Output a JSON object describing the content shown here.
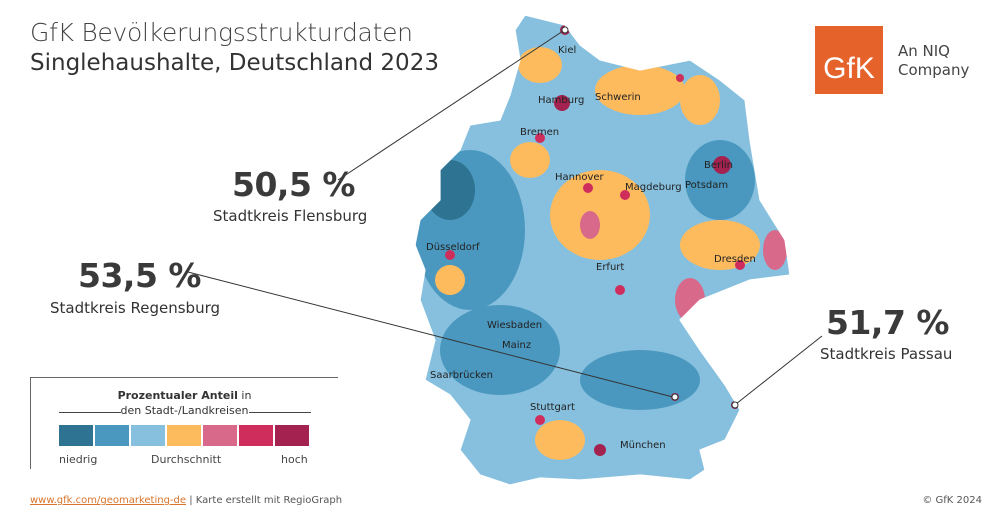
{
  "header": {
    "title": "GfK Bevölkerungsstrukturdaten",
    "subtitle": "Singlehaushalte, Deutschland 2023"
  },
  "logo": {
    "mark": "GfK",
    "tagline_line1": "An NIQ",
    "tagline_line2": "Company",
    "color": "#e5632b"
  },
  "callouts": [
    {
      "value": "50,5 %",
      "label": "Stadtkreis Flensburg"
    },
    {
      "value": "53,5 %",
      "label": "Stadtkreis Regensburg"
    },
    {
      "value": "51,7 %",
      "label": "Stadtkreis Passau"
    }
  ],
  "cities": [
    "Kiel",
    "Hamburg",
    "Schwerin",
    "Bremen",
    "Berlin",
    "Potsdam",
    "Hannover",
    "Magdeburg",
    "Düsseldorf",
    "Dresden",
    "Erfurt",
    "Wiesbaden",
    "Mainz",
    "Saarbrücken",
    "Stuttgart",
    "München"
  ],
  "legend": {
    "title_bold": "Prozentualer Anteil",
    "title_rest1": " in",
    "title_line2": "den Stadt-/Landkreisen",
    "low": "niedrig",
    "mid": "Durchschnitt",
    "high": "hoch",
    "colors": [
      "#2e7391",
      "#4a98bf",
      "#86c0de",
      "#fdbb5e",
      "#d9698a",
      "#cf2d5c",
      "#a3224f"
    ]
  },
  "footer": {
    "link": "www.gfk.com/geomarketing-de",
    "text": " | Karte erstellt mit RegioGraph",
    "copyright": "© GfK 2024"
  }
}
